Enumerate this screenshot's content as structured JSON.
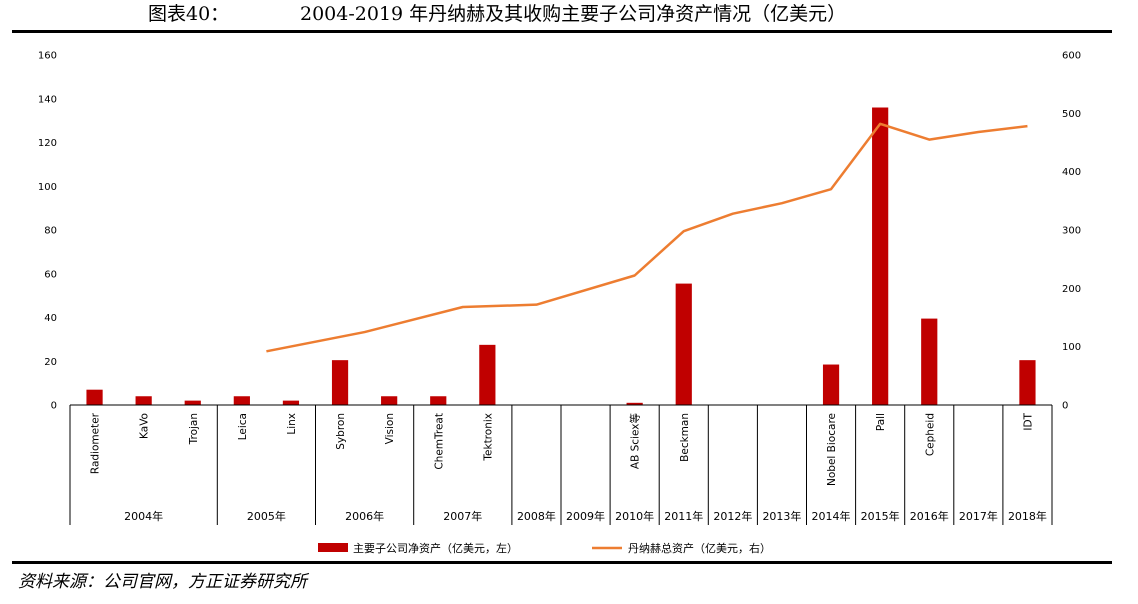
{
  "figure": {
    "label": "图表40：",
    "title": "2004-2019 年丹纳赫及其收购主要子公司净资产情况（亿美元）",
    "source": "资料来源：公司官网，方正证券研究所"
  },
  "chart_data": {
    "type": "bar",
    "colors": {
      "bar": "#c00000",
      "line": "#ed7d31"
    },
    "ylim_left": [
      0,
      160
    ],
    "yticks_left": [
      0,
      20,
      40,
      60,
      80,
      100,
      120,
      140,
      160
    ],
    "ylim_right": [
      0,
      600
    ],
    "yticks_right": [
      0,
      100,
      200,
      300,
      400,
      500,
      600
    ],
    "categories": [
      {
        "label": "Radiometer",
        "year": "2004年"
      },
      {
        "label": "KaVo",
        "year": "2004年"
      },
      {
        "label": "Trojan",
        "year": "2004年"
      },
      {
        "label": "Leica",
        "year": "2005年"
      },
      {
        "label": "Linx",
        "year": "2005年"
      },
      {
        "label": "Sybron",
        "year": "2006年"
      },
      {
        "label": "Vision",
        "year": "2006年"
      },
      {
        "label": "ChemTreat",
        "year": "2007年"
      },
      {
        "label": "Tektronix",
        "year": "2007年"
      },
      {
        "label": "",
        "year": "2008年"
      },
      {
        "label": "",
        "year": "2009年"
      },
      {
        "label": "AB Sciex等",
        "year": "2010年"
      },
      {
        "label": "Beckman",
        "year": "2011年"
      },
      {
        "label": "",
        "year": "2012年"
      },
      {
        "label": "",
        "year": "2013年"
      },
      {
        "label": "Nobel Biocare",
        "year": "2014年"
      },
      {
        "label": "Pall",
        "year": "2015年"
      },
      {
        "label": "Cepheid",
        "year": "2016年"
      },
      {
        "label": "",
        "year": "2017年"
      },
      {
        "label": "IDT",
        "year": "2018年"
      }
    ],
    "year_groups": [
      {
        "label": "2004年",
        "count": 3
      },
      {
        "label": "2005年",
        "count": 2
      },
      {
        "label": "2006年",
        "count": 2
      },
      {
        "label": "2007年",
        "count": 2
      },
      {
        "label": "2008年",
        "count": 1
      },
      {
        "label": "2009年",
        "count": 1
      },
      {
        "label": "2010年",
        "count": 1
      },
      {
        "label": "2011年",
        "count": 1
      },
      {
        "label": "2012年",
        "count": 1
      },
      {
        "label": "2013年",
        "count": 1
      },
      {
        "label": "2014年",
        "count": 1
      },
      {
        "label": "2015年",
        "count": 1
      },
      {
        "label": "2016年",
        "count": 1
      },
      {
        "label": "2017年",
        "count": 1
      },
      {
        "label": "2018年",
        "count": 1
      }
    ],
    "series": [
      {
        "name": "主要子公司净资产（亿美元，左）",
        "kind": "bar",
        "axis": "left",
        "values": [
          7,
          4,
          2,
          4,
          2,
          20.5,
          4,
          4,
          27.5,
          0,
          0,
          1,
          55.5,
          0,
          0,
          18.5,
          136,
          39.5,
          0,
          20.5
        ]
      },
      {
        "name": "丹纳赫总资产（亿美元，右）",
        "kind": "line",
        "axis": "right",
        "points": [
          {
            "cat": 4,
            "value": 92
          },
          {
            "cat": 6,
            "value": 125
          },
          {
            "cat": 8,
            "value": 168
          },
          {
            "cat": 9.5,
            "value": 172
          },
          {
            "cat": 11.5,
            "value": 222
          },
          {
            "cat": 12.5,
            "value": 298
          },
          {
            "cat": 13.5,
            "value": 328
          },
          {
            "cat": 14.5,
            "value": 346
          },
          {
            "cat": 15.5,
            "value": 370
          },
          {
            "cat": 16.5,
            "value": 482
          },
          {
            "cat": 17.5,
            "value": 455
          },
          {
            "cat": 18.5,
            "value": 468
          },
          {
            "cat": 19.5,
            "value": 478
          }
        ]
      }
    ]
  }
}
